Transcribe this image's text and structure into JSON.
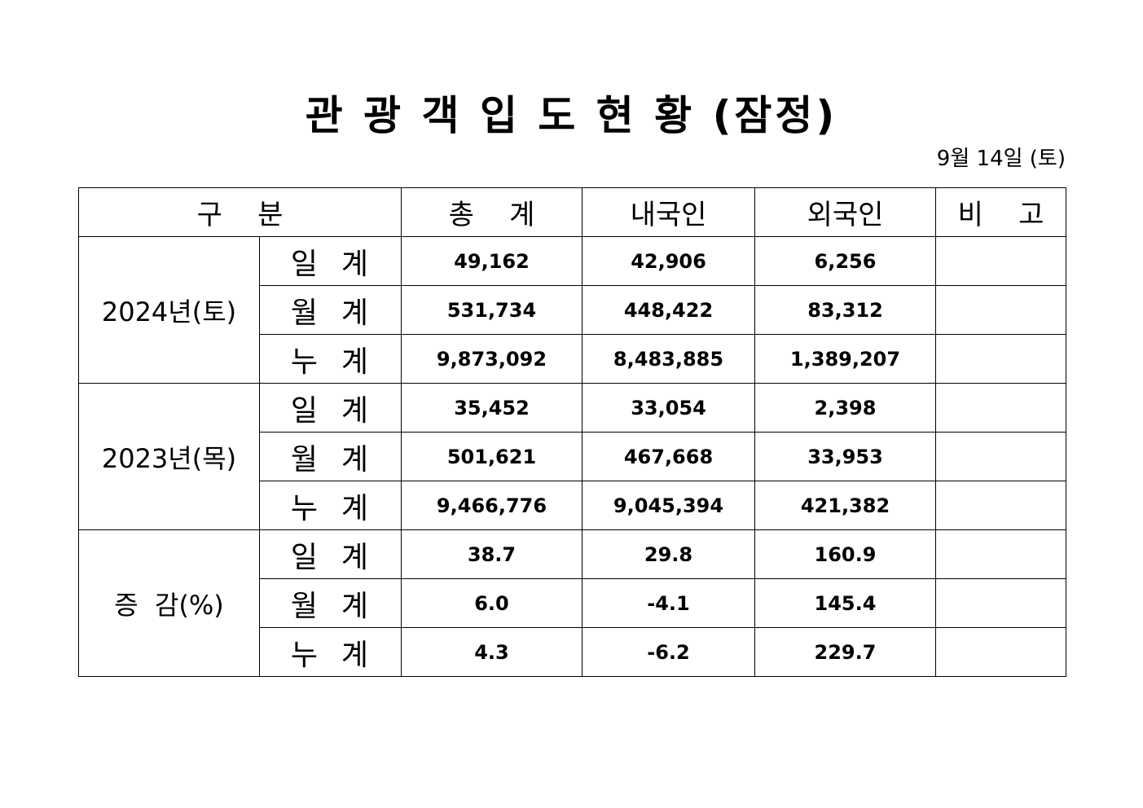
{
  "title": "관 광 객 입 도 현 황 (잠정)",
  "date": "9월  14일  (토)",
  "table": {
    "headers": {
      "category": "구    분",
      "total": "총    계",
      "domestic": "내국인",
      "foreign": "외국인",
      "remarks": "비    고"
    },
    "groups": [
      {
        "label": "2024년(토)",
        "rows": [
          {
            "period": "일  계",
            "total": "49,162",
            "domestic": "42,906",
            "foreign": "6,256",
            "remarks": ""
          },
          {
            "period": "월  계",
            "total": "531,734",
            "domestic": "448,422",
            "foreign": "83,312",
            "remarks": ""
          },
          {
            "period": "누  계",
            "total": "9,873,092",
            "domestic": "8,483,885",
            "foreign": "1,389,207",
            "remarks": ""
          }
        ]
      },
      {
        "label": "2023년(목)",
        "rows": [
          {
            "period": "일  계",
            "total": "35,452",
            "domestic": "33,054",
            "foreign": "2,398",
            "remarks": ""
          },
          {
            "period": "월  계",
            "total": "501,621",
            "domestic": "467,668",
            "foreign": "33,953",
            "remarks": ""
          },
          {
            "period": "누  계",
            "total": "9,466,776",
            "domestic": "9,045,394",
            "foreign": "421,382",
            "remarks": ""
          }
        ]
      },
      {
        "label": "증  감(%)",
        "rows": [
          {
            "period": "일  계",
            "total": "38.7",
            "domestic": "29.8",
            "foreign": "160.9",
            "remarks": ""
          },
          {
            "period": "월  계",
            "total": "6.0",
            "domestic": "-4.1",
            "foreign": "145.4",
            "remarks": ""
          },
          {
            "period": "누  계",
            "total": "4.3",
            "domestic": "-6.2",
            "foreign": "229.7",
            "remarks": ""
          }
        ]
      }
    ]
  }
}
